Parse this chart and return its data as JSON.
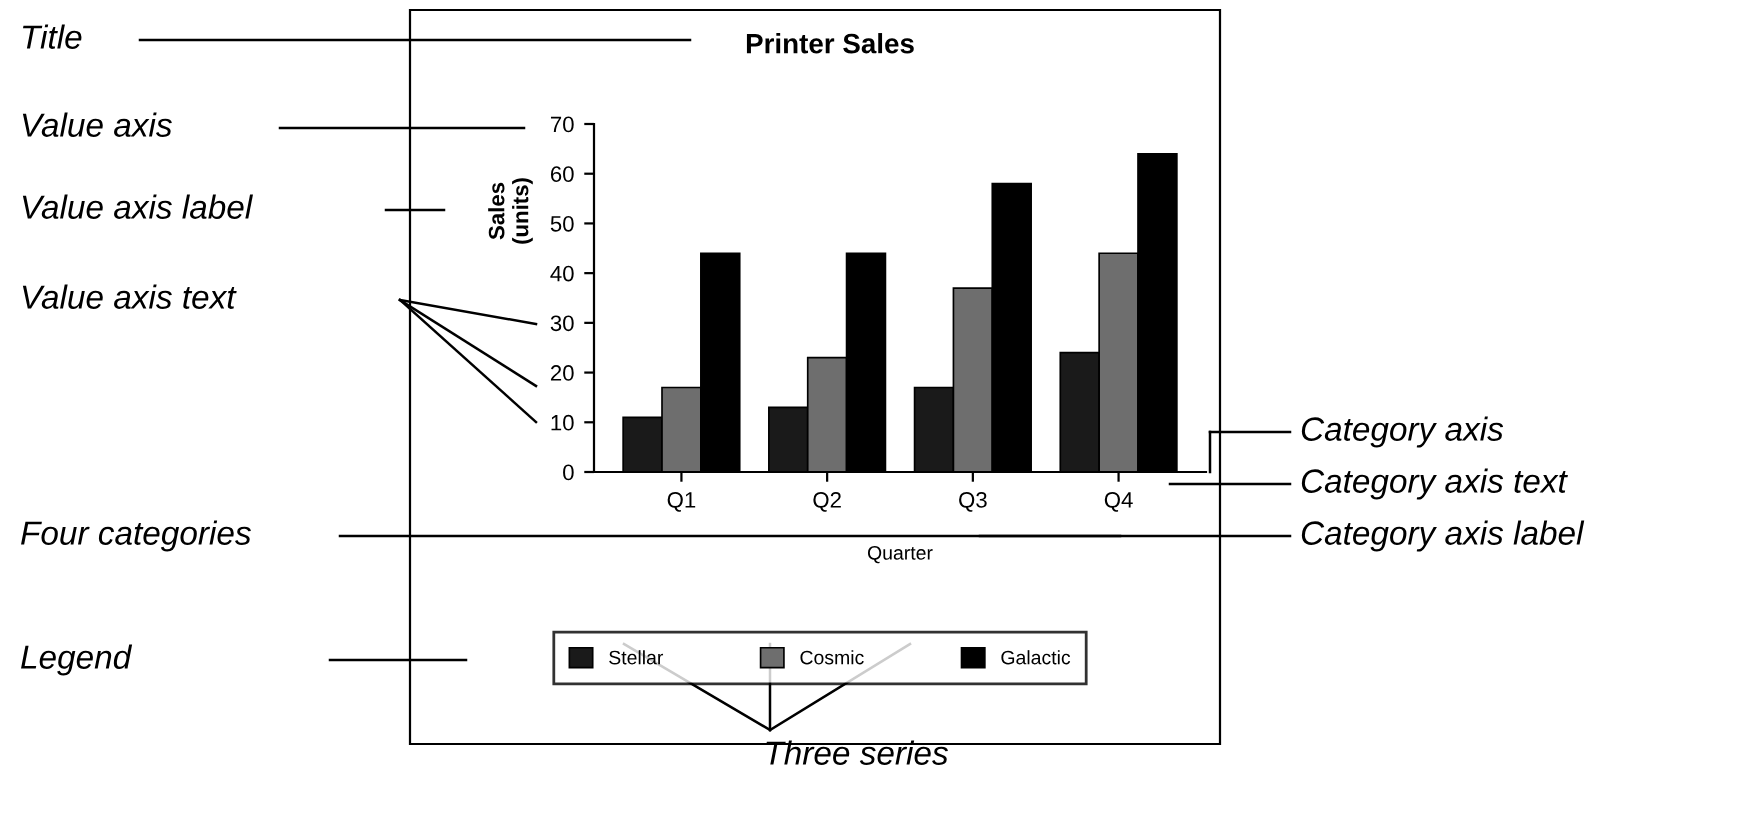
{
  "chart_data": {
    "type": "bar",
    "title": "Printer Sales",
    "xlabel": "Quarter",
    "ylabel": "Sales\n(units)",
    "categories": [
      "Q1",
      "Q2",
      "Q3",
      "Q4"
    ],
    "series": [
      {
        "name": "Stellar",
        "color": "#1a1a1a",
        "values": [
          11,
          13,
          17,
          24
        ]
      },
      {
        "name": "Cosmic",
        "color": "#6e6e6e",
        "values": [
          17,
          23,
          37,
          44
        ]
      },
      {
        "name": "Galactic",
        "color": "#000000",
        "values": [
          44,
          44,
          58,
          64
        ]
      }
    ],
    "ylim": [
      0,
      70
    ],
    "yticks": [
      0,
      10,
      20,
      30,
      40,
      50,
      60,
      70
    ],
    "grid": false,
    "legend": "bottom",
    "annotations": [
      "Title",
      "Value axis",
      "Value axis label",
      "Value axis text",
      "Four categories",
      "Legend",
      "Category axis",
      "Category axis text",
      "Category axis label",
      "Three series"
    ]
  }
}
